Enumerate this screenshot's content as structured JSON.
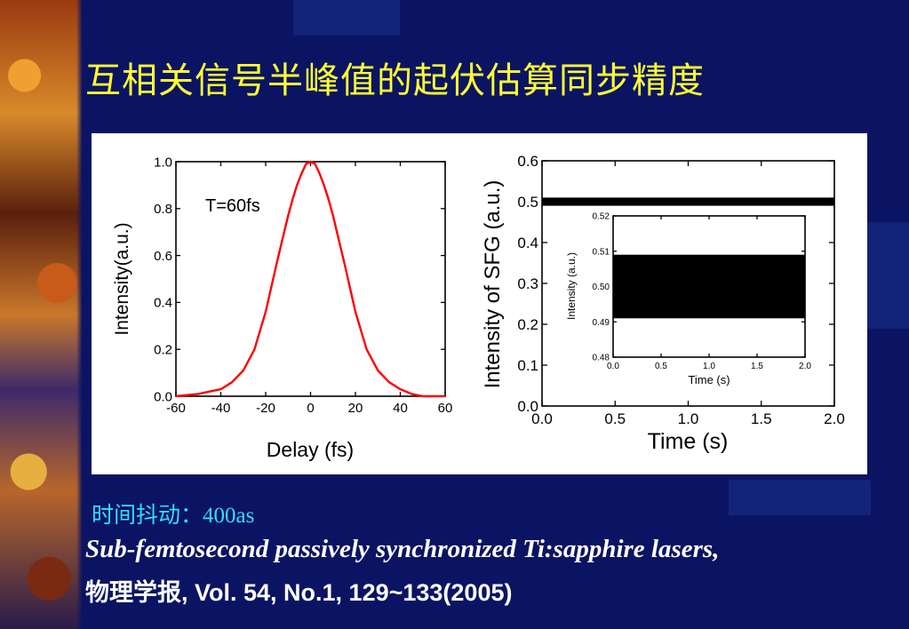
{
  "slide": {
    "title": "互相关信号半峰值的起伏估算同步精度",
    "jitter_label": "时间抖动：",
    "jitter_value": "400as",
    "reference_title": "Sub-femtosecond passively synchronized Ti:sapphire lasers,",
    "reference_journal": "物理学报, Vol. 54, No.1, 129~133(2005)"
  },
  "colors": {
    "background": "#0b1463",
    "title": "#ffff33",
    "jitter": "#33ddff",
    "curve": "#ff0000"
  },
  "chart_data": [
    {
      "type": "line",
      "xlabel": "Delay (fs)",
      "ylabel": "Intensity(a.u.)",
      "annotation": "T=60fs",
      "xlim": [
        -60,
        60
      ],
      "ylim": [
        0.0,
        1.0
      ],
      "xticks": [
        "-60",
        "-40",
        "-20",
        "0",
        "20",
        "40",
        "60"
      ],
      "yticks": [
        "0.0",
        "0.2",
        "0.4",
        "0.6",
        "0.8",
        "1.0"
      ],
      "series": [
        {
          "x": [
            -60,
            -50,
            -45,
            -40,
            -35,
            -30,
            -25,
            -20,
            -15,
            -12,
            -10,
            -8,
            -6,
            -4,
            -2,
            0,
            2,
            4,
            6,
            8,
            10,
            12,
            15,
            20,
            25,
            30,
            35,
            40,
            45,
            50,
            60
          ],
          "y": [
            0.0,
            0.01,
            0.02,
            0.03,
            0.06,
            0.11,
            0.2,
            0.36,
            0.57,
            0.69,
            0.77,
            0.84,
            0.9,
            0.95,
            0.99,
            1.0,
            0.99,
            0.95,
            0.9,
            0.84,
            0.77,
            0.69,
            0.57,
            0.36,
            0.2,
            0.11,
            0.06,
            0.03,
            0.01,
            0.0,
            0.0
          ]
        }
      ]
    },
    {
      "type": "line",
      "xlabel": "Time (s)",
      "ylabel": "Intensity of SFG (a.u.)",
      "xlim": [
        0.0,
        2.0
      ],
      "ylim": [
        0.0,
        0.6
      ],
      "xticks": [
        "0.0",
        "0.5",
        "1.0",
        "1.5",
        "2.0"
      ],
      "yticks": [
        "0.0",
        "0.1",
        "0.2",
        "0.3",
        "0.4",
        "0.5",
        "0.6"
      ],
      "band": {
        "x": [
          0.0,
          2.0
        ],
        "y": [
          0.49,
          0.51
        ]
      },
      "inset": {
        "xlabel": "Time (s)",
        "ylabel": "Intensity (a.u.)",
        "xlim": [
          0.0,
          2.0
        ],
        "ylim": [
          0.48,
          0.52
        ],
        "xticks": [
          "0.0",
          "0.5",
          "1.0",
          "1.5",
          "2.0"
        ],
        "yticks": [
          "0.48",
          "0.49",
          "0.50",
          "0.51",
          "0.52"
        ],
        "band": {
          "x": [
            0.0,
            2.0
          ],
          "y": [
            0.491,
            0.509
          ]
        }
      }
    }
  ]
}
